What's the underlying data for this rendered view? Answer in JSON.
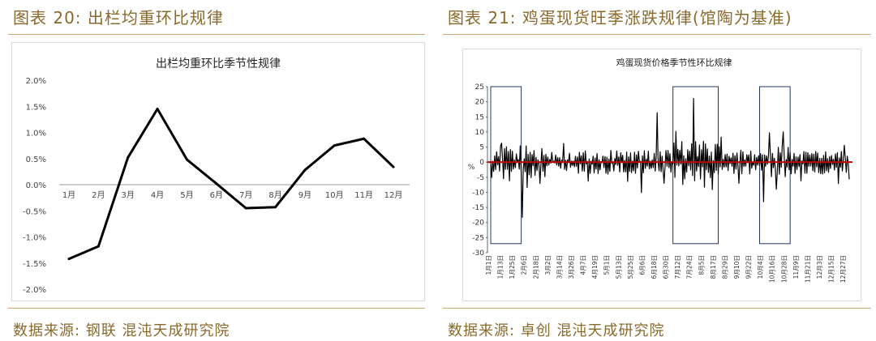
{
  "left": {
    "figure_title": "图表 20:  出栏均重环比规律",
    "source": "数据来源:  钢联  混沌天成研究院"
  },
  "right": {
    "figure_title": "图表 21:  鸡蛋现货旺季涨跌规律(馆陶为基准)",
    "source": "数据来源:  卓创  混沌天成研究院"
  },
  "colors": {
    "gold": "#8a6a2c",
    "rule": "#cfa96b",
    "line_black": "#000000",
    "zero_red": "#c00000",
    "box": "#1f3864"
  },
  "chart_data": [
    {
      "type": "line",
      "title": "出栏均重环比季节性规律",
      "categories": [
        "1月",
        "2月",
        "3月",
        "4月",
        "5月",
        "6月",
        "7月",
        "8月",
        "9月",
        "10月",
        "11月",
        "12月"
      ],
      "series": [
        {
          "values": [
            -1.42,
            -1.18,
            0.52,
            1.45,
            0.48,
            0.02,
            -0.45,
            -0.43,
            0.28,
            0.75,
            0.88,
            0.34
          ]
        }
      ],
      "ylim": [
        -2.0,
        2.0
      ],
      "yticks": [
        "2.0%",
        "1.5%",
        "1.0%",
        "0.5%",
        "0.0%",
        "-0.5%",
        "-1.0%",
        "-1.5%",
        "-2.0%"
      ],
      "grid": false,
      "legend": "none"
    },
    {
      "type": "line",
      "title": "鸡蛋现货价格季节性环比规律",
      "ylabel": "%",
      "ylim": [
        -30,
        25
      ],
      "yticks": [
        "25",
        "20",
        "15",
        "10",
        "5",
        "0",
        "-5",
        "-10",
        "-15",
        "-20",
        "-25",
        "-30"
      ],
      "xticks": [
        "1月1日",
        "1月13日",
        "1月25日",
        "2月6日",
        "2月18日",
        "3月2日",
        "3月14日",
        "3月26日",
        "4月7日",
        "4月19日",
        "5月1日",
        "5月13日",
        "5月25日",
        "6月6日",
        "6月18日",
        "6月30日",
        "7月12日",
        "7月24日",
        "8月5日",
        "8月17日",
        "8月29日",
        "9月10日",
        "9月22日",
        "10月4日",
        "10月16日",
        "10月28日",
        "11月9日",
        "11月21日",
        "12月3日",
        "12月15日",
        "12月27日"
      ],
      "x_start": "1月1日",
      "x_end": "12月31日",
      "highlight_ranges": [
        [
          "1月1日",
          "2月1日"
        ],
        [
          "7月5日",
          "8月20日"
        ],
        [
          "10月1日",
          "11月1日"
        ]
      ],
      "highlight_peaks": [
        {
          "x": "1月12日",
          "y": 6.3
        },
        {
          "x": "1月20日",
          "y": -6.2
        },
        {
          "x": "2月2日",
          "y": -18.3
        },
        {
          "x": "2月7日",
          "y": -8.4
        },
        {
          "x": "2月20日",
          "y": -7.1
        },
        {
          "x": "3月16日",
          "y": 6.2
        },
        {
          "x": "4月10日",
          "y": -6.3
        },
        {
          "x": "5月20日",
          "y": -6.4
        },
        {
          "x": "6月3日",
          "y": -10.1
        },
        {
          "x": "6月19日",
          "y": 16.4
        },
        {
          "x": "6月26日",
          "y": -7.0
        },
        {
          "x": "7月8日",
          "y": 10.2
        },
        {
          "x": "7月15日",
          "y": -7.4
        },
        {
          "x": "7月26日",
          "y": 21.1
        },
        {
          "x": "8月6日",
          "y": -8.3
        },
        {
          "x": "8月14日",
          "y": -9.1
        },
        {
          "x": "8月23日",
          "y": 8.3
        },
        {
          "x": "9月10日",
          "y": -7.0
        },
        {
          "x": "10月5日",
          "y": -13.1
        },
        {
          "x": "10月11日",
          "y": 9.7
        },
        {
          "x": "10月18日",
          "y": -9.0
        },
        {
          "x": "10月25日",
          "y": 10.0
        },
        {
          "x": "11月12日",
          "y": -6.2
        },
        {
          "x": "12月20日",
          "y": -7.1
        },
        {
          "x": "12月26日",
          "y": 5.6
        },
        {
          "x": "12月31日",
          "y": -5.7
        }
      ],
      "zero_line": {
        "value": 0,
        "color": "#c00000"
      },
      "grid": false,
      "legend": "none"
    }
  ]
}
